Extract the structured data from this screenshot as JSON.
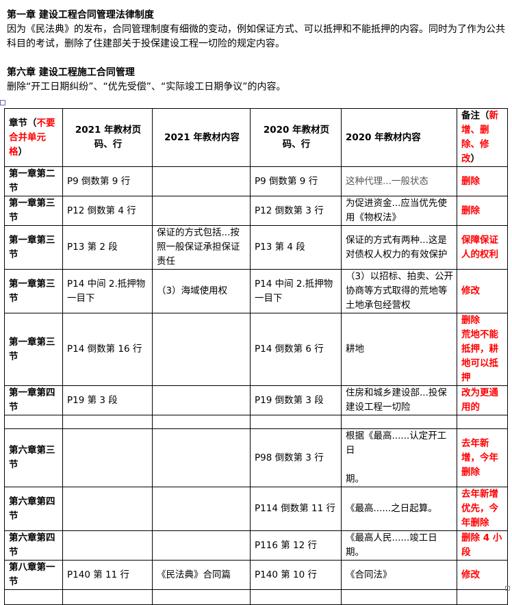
{
  "sections": [
    {
      "title": "第一章  建设工程合同管理法律制度",
      "body": "因为《民法典》的发布，合同管理制度有细微的变动，例如保证方式、可以抵押和不能抵押的内容。同时为了作为公共科目的考试，删除了住建部关于投保建设工程一切险的规定内容。"
    },
    {
      "title": "第六章  建设工程施工合同管理",
      "body": "删除“开工日期纠纷”、“优先受偿”、“实际竣工日期争议”的内容。"
    }
  ],
  "table": {
    "header": {
      "c0_a": "章节（",
      "c0_red": "不要合并单元格",
      "c0_b": "）",
      "c1": "2021 年教材页码、行",
      "c2": "2021 年教材内容",
      "c3": "2020 年教材页码、行",
      "c4": "2020 年教材内容",
      "c5_a": "备注（",
      "c5_red": "新增、删除、修改",
      "c5_b": "）"
    },
    "rows": [
      [
        "第一章第二节",
        "P9 倒数第 9 行",
        "",
        "P9 倒数第 9 行",
        "这种代理...一般状态",
        "删除"
      ],
      [
        "第一章第三节",
        "P12 倒数第 4 行",
        "",
        "P12 倒数第 3 行",
        "为促进资金...应当优先使用《物权法》",
        "删除"
      ],
      [
        "第一章第三节",
        "P13 第 2 段",
        "保证的方式包括...按照一般保证承担保证责任",
        "P13 第 4 段",
        "保证的方式有两种...这是对债权人权力的有效保护",
        "保障保证人的权利"
      ],
      [
        "第一章第三节",
        "P14 中间 2.抵押物一目下",
        "（3）海域使用权",
        "P14 中间 2.抵押物一目下",
        "（3）以招标、拍卖、公开协商等方式取得的荒地等土地承包经营权",
        "修改"
      ],
      [
        "第一章第三节",
        "P14 倒数第 16 行",
        "",
        "P14 倒数第 6 行",
        "耕地",
        "删除\n荒地不能抵押，耕地可以抵押"
      ],
      [
        "第一章第四节",
        "P19 第 3 段",
        "",
        "P19 倒数第 3 段",
        "住房和城乡建设部...投保建设工程一切险",
        "改为更通用的"
      ],
      [
        "",
        "",
        "",
        "",
        "",
        ""
      ],
      [
        "第六章第三节",
        "",
        "",
        "P98 倒数第 3 行",
        "根据《最高......认定开工日\n\n期。",
        "去年新增，今年删除"
      ],
      [
        "第六章第四节",
        "",
        "",
        "P114 倒数第 11 行",
        "《最高......之日起算。",
        "去年新增优先，今年删除"
      ],
      [
        "第六章第四节",
        "",
        "",
        "P116 第 12 行",
        "《最高人民......竣工日期。",
        "删除 4 小段"
      ],
      [
        "第八章第一节",
        "P140 第 11 行",
        "《民法典》合同篇",
        "P140 第 10 行",
        "《合同法》",
        "修改"
      ],
      [
        "",
        "",
        "",
        "",
        "",
        ""
      ]
    ]
  },
  "colors": {
    "note": "#ff0000"
  }
}
